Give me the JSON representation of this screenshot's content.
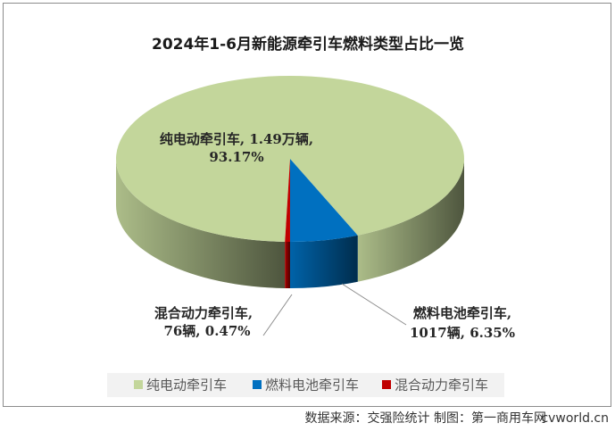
{
  "chart_data": {
    "type": "pie3d",
    "title": "2024年1-6月新能源牵引车燃料类型占比一览",
    "categories": [
      "纯电动牵引车",
      "燃料电池牵引车",
      "混合动力牵引车"
    ],
    "values": [
      93.17,
      6.35,
      0.47
    ],
    "value_labels": [
      [
        "纯电动牵引车, 1.49万辆,",
        "93.17%"
      ],
      [
        "燃料电池牵引车,",
        "1017辆, 6.35%"
      ],
      [
        "混合动力牵引车,",
        "76辆, 0.47%"
      ]
    ],
    "colors": [
      "#c3d69b",
      "#0070c0",
      "#c00000"
    ],
    "legend": "bottom",
    "source": "数据来源：交强险统计  制图：第一商用车网",
    "watermark": "cvworld.cn"
  }
}
